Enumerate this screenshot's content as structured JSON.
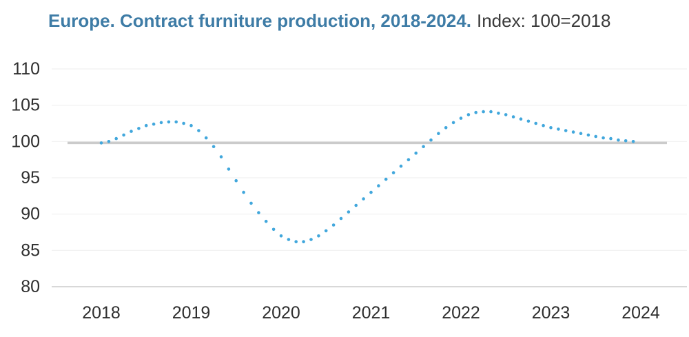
{
  "title": {
    "main": "Europe. Contract furniture production, 2018-2024.",
    "suffix": "Index: 100=2018"
  },
  "colors": {
    "title_blue": "#3e7ca6",
    "subtitle_text": "#3a3a3a",
    "axis_text": "#2e2e2e",
    "gridline": "#f0f0f0",
    "bottom_axis_line": "#d8d8d8",
    "reference_line": "#cbcbcb",
    "dot_blue": "#41a7dc"
  },
  "chart_data": {
    "type": "line",
    "marker_style": "dotted",
    "title": "Europe. Contract furniture production, 2018-2024.",
    "subtitle": "Index: 100=2018",
    "grid": "horizontal",
    "legend": "none",
    "x_axis": {
      "tick_labels": [
        "2018",
        "2019",
        "2020",
        "2021",
        "2022",
        "2023",
        "2024"
      ]
    },
    "y_axis": {
      "ticks": [
        110,
        105,
        100,
        95,
        90,
        85,
        80
      ],
      "range": [
        80,
        110
      ]
    },
    "reference_line": {
      "value": 100
    },
    "series": [
      {
        "name": "Contract furniture production index (100=2018)",
        "color": "#41a7dc",
        "x_start_year": 2018.0,
        "x_interval_years": 0.083333,
        "values": [
          99.8,
          100.0,
          100.4,
          100.9,
          101.4,
          101.8,
          102.2,
          102.4,
          102.6,
          102.7,
          102.7,
          102.5,
          102.2,
          101.5,
          100.5,
          99.3,
          97.9,
          96.2,
          94.6,
          93.0,
          91.5,
          90.2,
          89.0,
          87.9,
          87.0,
          86.5,
          86.2,
          86.2,
          86.5,
          87.0,
          87.7,
          88.5,
          89.4,
          90.3,
          91.2,
          92.1,
          93.0,
          93.9,
          94.8,
          95.7,
          96.6,
          97.5,
          98.4,
          99.3,
          100.2,
          101.1,
          101.9,
          102.6,
          103.2,
          103.7,
          104.0,
          104.1,
          104.1,
          103.9,
          103.7,
          103.4,
          103.1,
          102.8,
          102.5,
          102.2,
          101.9,
          101.7,
          101.5,
          101.3,
          101.1,
          100.9,
          100.7,
          100.5,
          100.4,
          100.2,
          100.1,
          100.0
        ]
      }
    ]
  }
}
